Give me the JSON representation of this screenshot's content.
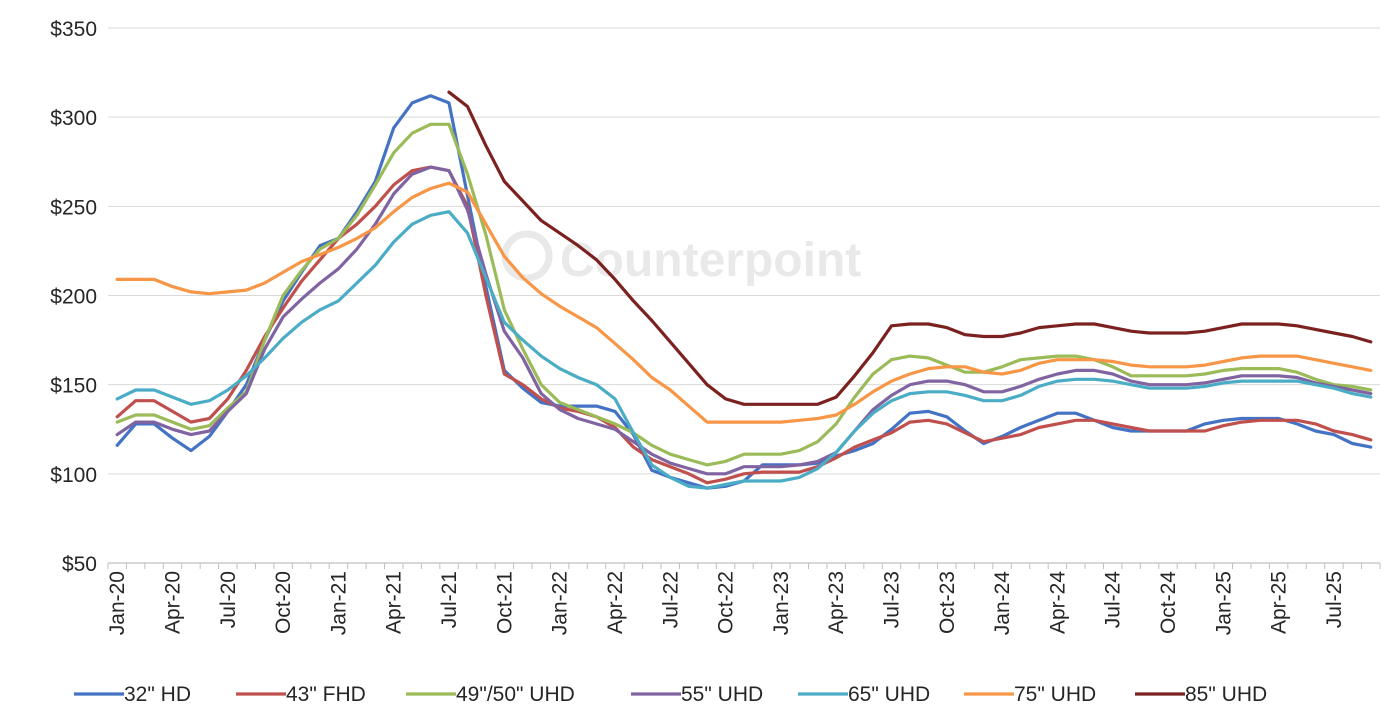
{
  "watermark": "Counterpoint",
  "chart_data": {
    "type": "line",
    "title": "",
    "xlabel": "",
    "ylabel": "",
    "ylim": [
      50,
      350
    ],
    "yticks": [
      50,
      100,
      150,
      200,
      250,
      300,
      350
    ],
    "ytick_labels": [
      "$50",
      "$100",
      "$150",
      "$200",
      "$250",
      "$300",
      "$350"
    ],
    "ytick_prefix": "$",
    "grid": "horizontal",
    "legend_position": "bottom",
    "x": [
      "Jan-20",
      "Feb-20",
      "Mar-20",
      "Apr-20",
      "May-20",
      "Jun-20",
      "Jul-20",
      "Aug-20",
      "Sep-20",
      "Oct-20",
      "Nov-20",
      "Dec-20",
      "Jan-21",
      "Feb-21",
      "Mar-21",
      "Apr-21",
      "May-21",
      "Jun-21",
      "Jul-21",
      "Aug-21",
      "Sep-21",
      "Oct-21",
      "Nov-21",
      "Dec-21",
      "Jan-22",
      "Feb-22",
      "Mar-22",
      "Apr-22",
      "May-22",
      "Jun-22",
      "Jul-22",
      "Aug-22",
      "Sep-22",
      "Oct-22",
      "Nov-22",
      "Dec-22",
      "Jan-23",
      "Feb-23",
      "Mar-23",
      "Apr-23",
      "May-23",
      "Jun-23",
      "Jul-23",
      "Aug-23",
      "Sep-23",
      "Oct-23",
      "Nov-23",
      "Dec-23",
      "Jan-24",
      "Feb-24",
      "Mar-24",
      "Apr-24",
      "May-24",
      "Jun-24",
      "Jul-24",
      "Aug-24",
      "Sep-24",
      "Oct-24",
      "Nov-24",
      "Dec-24",
      "Jan-25",
      "Feb-25",
      "Mar-25",
      "Apr-25",
      "May-25",
      "Jun-25",
      "Jul-25",
      "Aug-25",
      "Sep-25"
    ],
    "xtick_labels": [
      "Jan-20",
      "Apr-20",
      "Jul-20",
      "Oct-20",
      "Jan-21",
      "Apr-21",
      "Jul-21",
      "Oct-21",
      "Jan-22",
      "Apr-22",
      "Jul-22",
      "Oct-22",
      "Jan-23",
      "Apr-23",
      "Jul-23",
      "Oct-23",
      "Jan-24",
      "Apr-24",
      "Jul-24",
      "Oct-24",
      "Jan-25",
      "Apr-25",
      "Jul-25"
    ],
    "series": [
      {
        "name": "32\" HD",
        "color": "#4472c4",
        "values": [
          116,
          128,
          128,
          120,
          113,
          121,
          135,
          150,
          175,
          197,
          213,
          228,
          232,
          247,
          264,
          294,
          308,
          312,
          308,
          256,
          205,
          158,
          148,
          140,
          138,
          138,
          138,
          135,
          122,
          102,
          98,
          95,
          92,
          93,
          96,
          105,
          105,
          105,
          106,
          110,
          113,
          117,
          125,
          134,
          135,
          132,
          124,
          117,
          121,
          126,
          130,
          134,
          134,
          130,
          126,
          124,
          124,
          124,
          124,
          128,
          130,
          131,
          131,
          131,
          128,
          124,
          122,
          117,
          115
        ]
      },
      {
        "name": "43\" FHD",
        "color": "#c0504d",
        "values": [
          132,
          141,
          141,
          135,
          129,
          131,
          142,
          158,
          177,
          193,
          208,
          220,
          232,
          240,
          250,
          262,
          270,
          272,
          270,
          250,
          200,
          156,
          150,
          142,
          137,
          135,
          132,
          126,
          115,
          108,
          104,
          100,
          95,
          97,
          100,
          101,
          101,
          101,
          104,
          109,
          115,
          119,
          123,
          129,
          130,
          128,
          123,
          118,
          120,
          122,
          126,
          128,
          130,
          130,
          128,
          126,
          124,
          124,
          124,
          124,
          127,
          129,
          130,
          130,
          130,
          128,
          124,
          122,
          119
        ]
      },
      {
        "name": "49\"/50\" UHD",
        "color": "#9bbb59",
        "values": [
          129,
          133,
          133,
          129,
          125,
          127,
          137,
          146,
          175,
          200,
          214,
          226,
          232,
          245,
          262,
          280,
          291,
          296,
          296,
          268,
          234,
          192,
          170,
          150,
          140,
          136,
          132,
          128,
          123,
          116,
          111,
          108,
          105,
          107,
          111,
          111,
          111,
          113,
          118,
          128,
          143,
          156,
          164,
          166,
          165,
          161,
          157,
          157,
          160,
          164,
          165,
          166,
          166,
          164,
          160,
          155,
          155,
          155,
          155,
          156,
          158,
          159,
          159,
          159,
          157,
          153,
          150,
          149,
          147
        ]
      },
      {
        "name": "55\" UHD",
        "color": "#8064a2",
        "values": [
          122,
          129,
          129,
          125,
          122,
          124,
          135,
          145,
          170,
          188,
          198,
          207,
          215,
          226,
          240,
          257,
          268,
          272,
          270,
          248,
          212,
          180,
          165,
          145,
          136,
          131,
          128,
          125,
          118,
          111,
          106,
          103,
          100,
          100,
          104,
          104,
          104,
          105,
          107,
          112,
          124,
          136,
          144,
          150,
          152,
          152,
          150,
          146,
          146,
          149,
          153,
          156,
          158,
          158,
          156,
          152,
          150,
          150,
          150,
          151,
          153,
          155,
          155,
          155,
          154,
          151,
          149,
          147,
          145
        ]
      },
      {
        "name": "65\" UHD",
        "color": "#4bacc6",
        "values": [
          142,
          147,
          147,
          143,
          139,
          141,
          147,
          155,
          165,
          176,
          185,
          192,
          197,
          207,
          217,
          230,
          240,
          245,
          247,
          235,
          210,
          185,
          175,
          166,
          159,
          154,
          150,
          142,
          123,
          105,
          98,
          93,
          92,
          94,
          96,
          96,
          96,
          98,
          103,
          112,
          124,
          134,
          141,
          145,
          146,
          146,
          144,
          141,
          141,
          144,
          149,
          152,
          153,
          153,
          152,
          150,
          148,
          148,
          148,
          149,
          151,
          152,
          152,
          152,
          152,
          150,
          148,
          145,
          143
        ]
      },
      {
        "name": "75\" UHD",
        "color": "#f79646",
        "values": [
          209,
          209,
          209,
          205,
          202,
          201,
          202,
          203,
          207,
          213,
          219,
          223,
          227,
          232,
          238,
          247,
          255,
          260,
          263,
          258,
          240,
          222,
          210,
          201,
          194,
          188,
          182,
          173,
          164,
          154,
          147,
          138,
          129,
          129,
          129,
          129,
          129,
          130,
          131,
          133,
          139,
          146,
          152,
          156,
          159,
          160,
          160,
          157,
          156,
          158,
          162,
          164,
          164,
          164,
          163,
          161,
          160,
          160,
          160,
          161,
          163,
          165,
          166,
          166,
          166,
          164,
          162,
          160,
          158
        ]
      },
      {
        "name": "85\" UHD",
        "color": "#7b2120",
        "values": [
          null,
          null,
          null,
          null,
          null,
          null,
          null,
          null,
          null,
          null,
          null,
          null,
          null,
          null,
          null,
          null,
          null,
          null,
          314,
          306,
          284,
          264,
          253,
          242,
          235,
          228,
          220,
          209,
          197,
          186,
          174,
          162,
          150,
          142,
          139,
          139,
          139,
          139,
          139,
          143,
          155,
          168,
          183,
          184,
          184,
          182,
          178,
          177,
          177,
          179,
          182,
          183,
          184,
          184,
          182,
          180,
          179,
          179,
          179,
          180,
          182,
          184,
          184,
          184,
          183,
          181,
          179,
          177,
          174
        ]
      }
    ]
  }
}
